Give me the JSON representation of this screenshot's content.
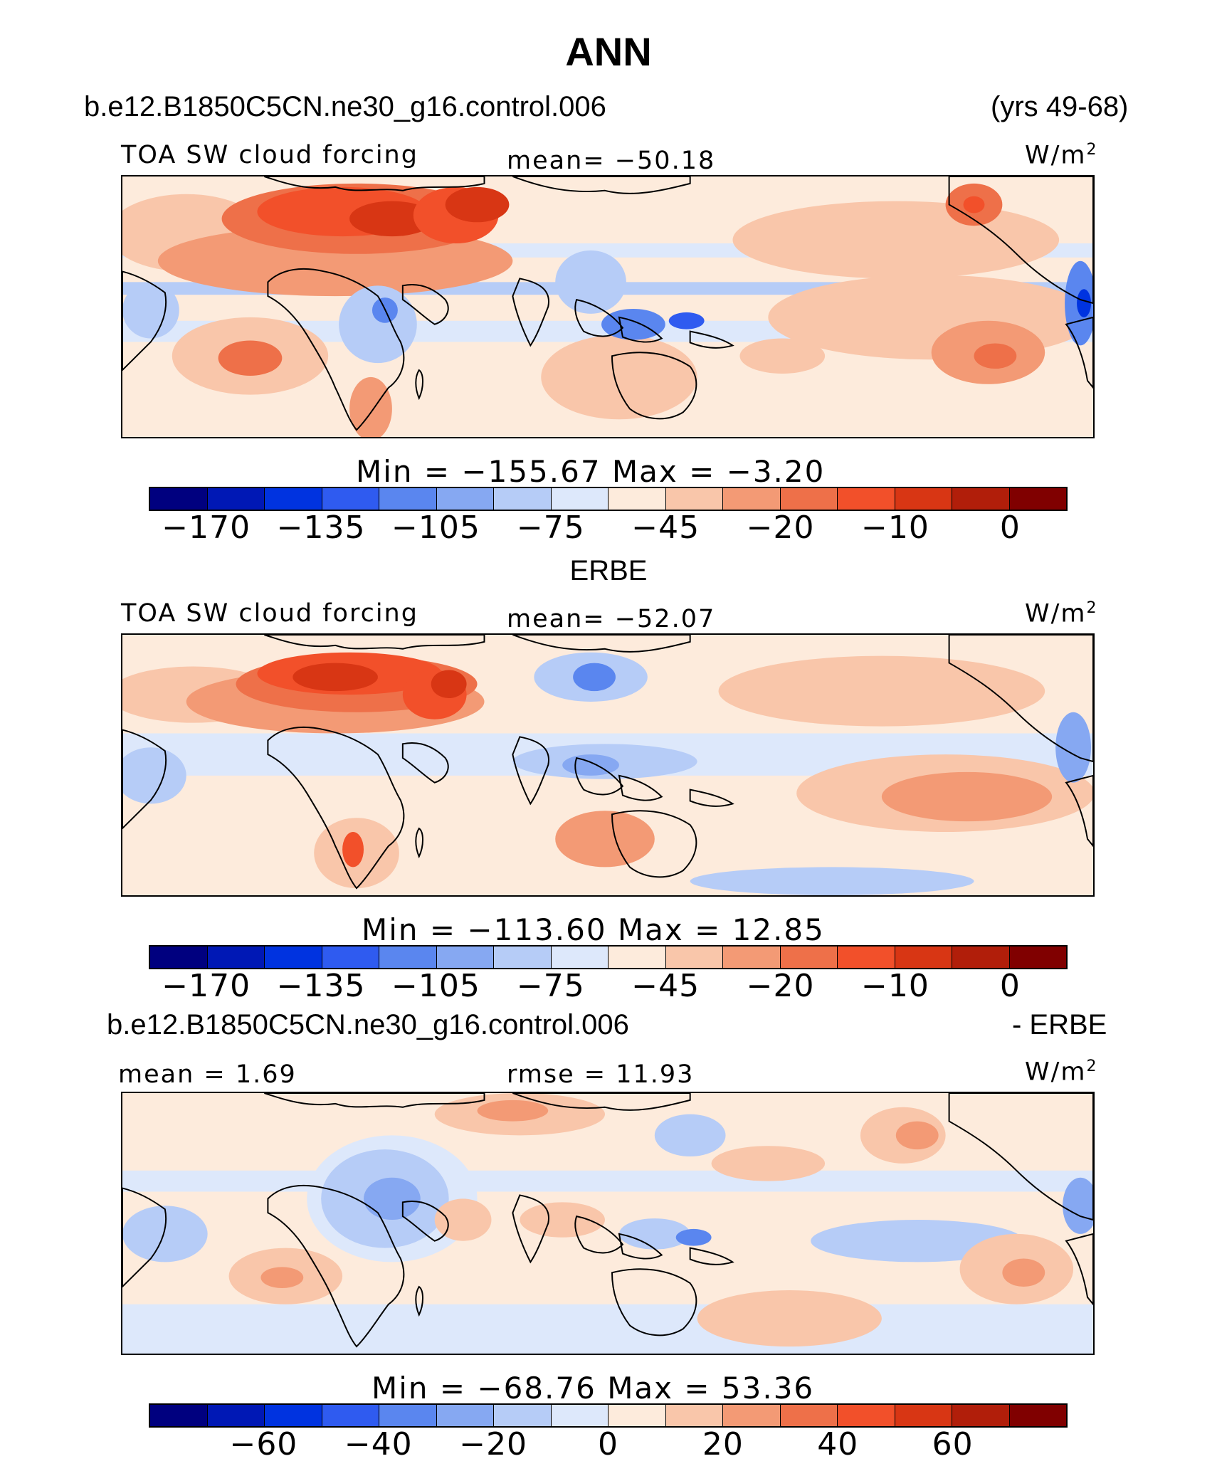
{
  "title": "ANN",
  "case_name": "b.e12.B1850C5CN.ne30_g16.control.006",
  "years": "(yrs 49-68)",
  "obs_name": "ERBE",
  "diff_case": "b.e12.B1850C5CN.ne30_g16.control.006",
  "diff_suffix": "- ERBE",
  "units_base": "W/m",
  "units_exp": "2",
  "panels": [
    {
      "label": "TOA SW cloud forcing",
      "stat_text": "mean= −50.18",
      "minmax_text": "Min  =  −155.67  Max  =    −3.20",
      "colorbar_ticks": [
        "−170",
        "−135",
        "−105",
        "−75",
        "−45",
        "−20",
        "−10",
        "0"
      ]
    },
    {
      "label": "TOA SW cloud forcing",
      "stat_text": "mean= −52.07",
      "minmax_text": "Min  =  −113.60  Max  =    12.85",
      "colorbar_ticks": [
        "−170",
        "−135",
        "−105",
        "−75",
        "−45",
        "−20",
        "−10",
        "0"
      ]
    },
    {
      "label": "mean =    1.69",
      "stat_text": "rmse =   11.93",
      "minmax_text": "Min  =  −68.76  Max  =    53.36",
      "colorbar_ticks": [
        "−60",
        "−40",
        "−20",
        "0",
        "20",
        "40",
        "60"
      ]
    }
  ],
  "chart_data": [
    {
      "type": "heatmap",
      "title": "TOA SW cloud forcing",
      "units": "W/m2",
      "mean": -50.18,
      "min": -155.67,
      "max": -3.2,
      "colorbar_levels": [
        -170,
        -135,
        -105,
        -75,
        -45,
        -20,
        -10,
        0
      ],
      "colors": [
        "#00007f",
        "#0018b5",
        "#0033e0",
        "#2f5bf0",
        "#5a86ef",
        "#86a8f2",
        "#b6ccf7",
        "#dde8fb",
        "#fdebdc",
        "#f9c6aa",
        "#f39a75",
        "#ee7049",
        "#f2502a",
        "#d83614",
        "#b11e0a",
        "#800000"
      ]
    },
    {
      "type": "heatmap",
      "title": "TOA SW cloud forcing",
      "units": "W/m2",
      "mean": -52.07,
      "min": -113.6,
      "max": 12.85,
      "colorbar_levels": [
        -170,
        -135,
        -105,
        -75,
        -45,
        -20,
        -10,
        0
      ],
      "colors": [
        "#00007f",
        "#0018b5",
        "#0033e0",
        "#2f5bf0",
        "#5a86ef",
        "#86a8f2",
        "#b6ccf7",
        "#dde8fb",
        "#fdebdc",
        "#f9c6aa",
        "#f39a75",
        "#ee7049",
        "#f2502a",
        "#d83614",
        "#b11e0a",
        "#800000"
      ]
    },
    {
      "type": "heatmap",
      "title": "b.e12.B1850C5CN.ne30_g16.control.006 - ERBE",
      "units": "W/m2",
      "mean": 1.69,
      "rmse": 11.93,
      "min": -68.76,
      "max": 53.36,
      "colorbar_levels": [
        -60,
        -40,
        -20,
        0,
        20,
        40,
        60
      ],
      "colors": [
        "#00007f",
        "#0018b5",
        "#0033e0",
        "#2f5bf0",
        "#5a86ef",
        "#86a8f2",
        "#b6ccf7",
        "#dde8fb",
        "#fdebdc",
        "#f9c6aa",
        "#f39a75",
        "#ee7049",
        "#f2502a",
        "#d83614",
        "#b11e0a",
        "#800000"
      ]
    }
  ]
}
